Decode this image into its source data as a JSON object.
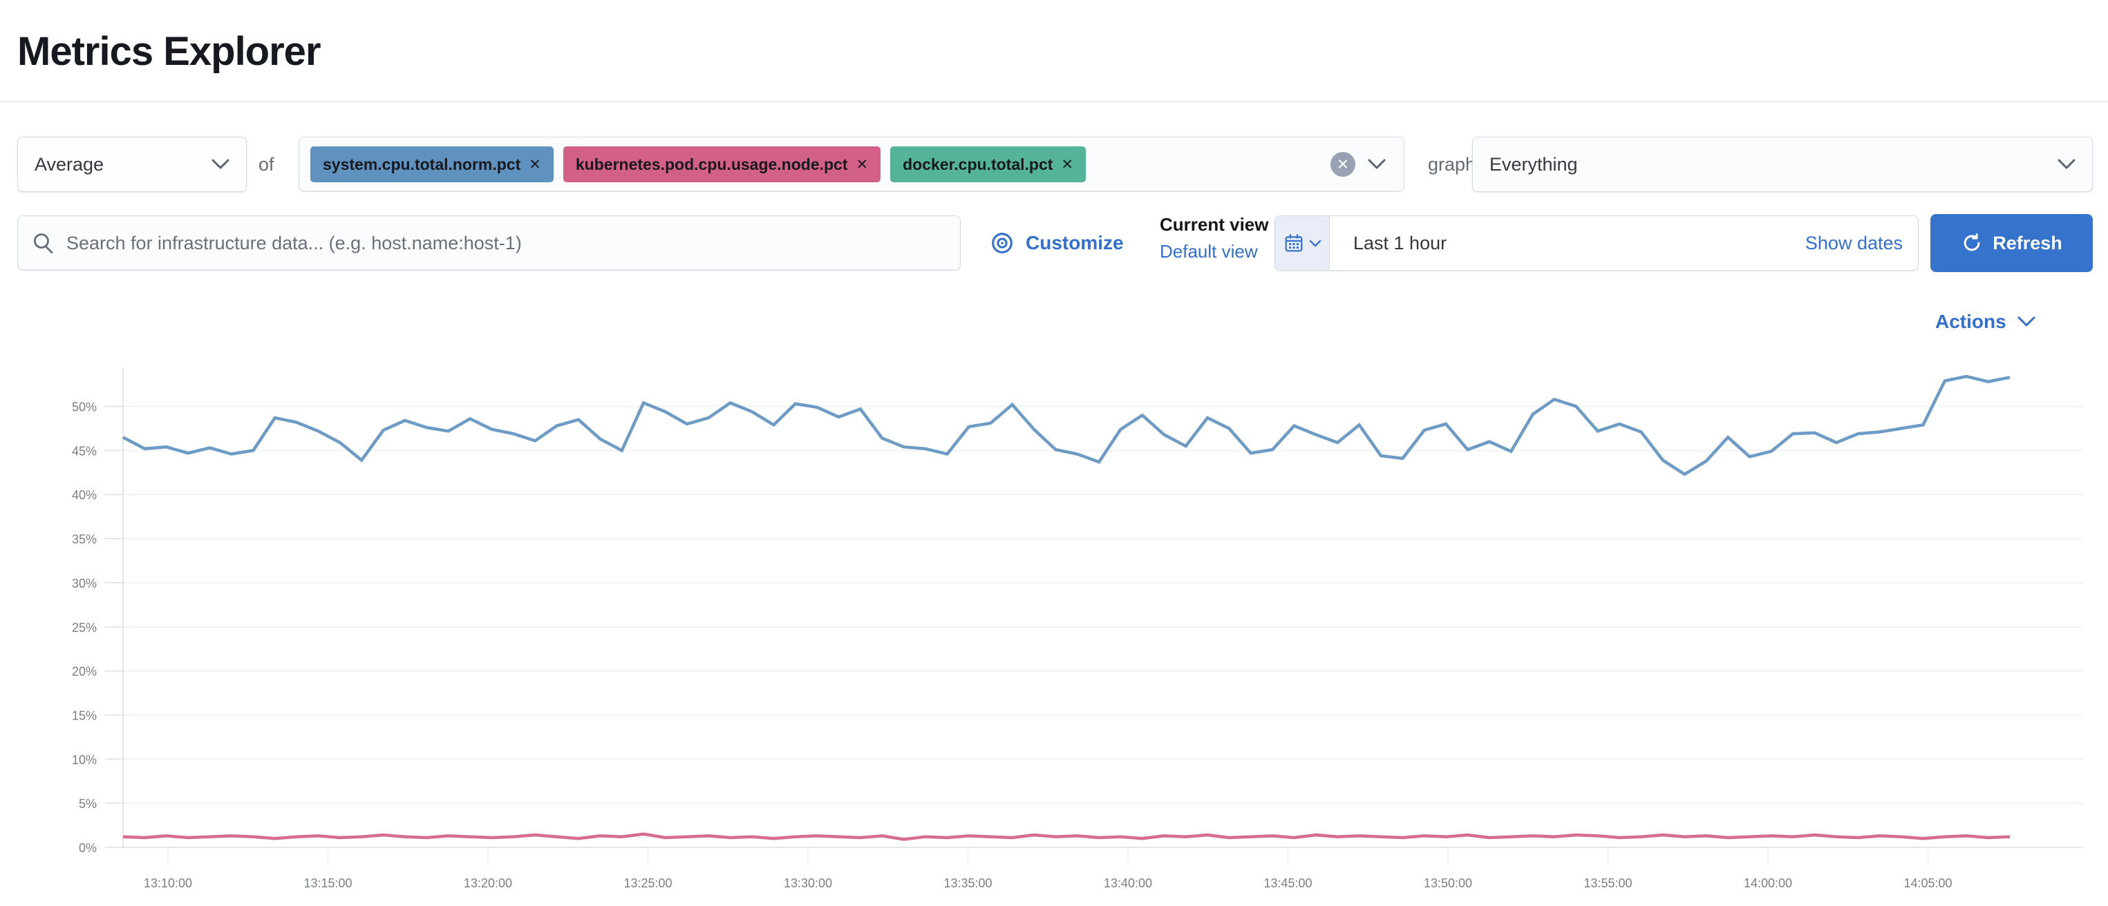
{
  "page": {
    "title": "Metrics Explorer"
  },
  "toolbar": {
    "aggregation_value": "Average",
    "of_label": "of",
    "metrics": [
      {
        "label": "system.cpu.total.norm.pct",
        "color": "#6092C0",
        "remove_icon": "✕"
      },
      {
        "label": "kubernetes.pod.cpu.usage.node.pct",
        "color": "#D36086",
        "remove_icon": "✕"
      },
      {
        "label": "docker.cpu.total.pct",
        "color": "#54B399",
        "remove_icon": "✕"
      }
    ],
    "clear_all_icon": "✕",
    "graph_per_label": "graph per",
    "group_by_value": "Everything"
  },
  "search": {
    "placeholder": "Search for infrastructure data... (e.g. host.name:host-1)"
  },
  "view_controls": {
    "customize_label": "Customize",
    "current_view_label": "Current view",
    "current_view_value": "Default view"
  },
  "time_picker": {
    "range_label": "Last 1 hour",
    "show_dates_label": "Show dates",
    "refresh_label": "Refresh"
  },
  "actions_label": "Actions",
  "colors": {
    "primary_blue": "#3573cd",
    "link_blue": "#336fce",
    "series_blue": "#6092C0",
    "series_pink": "#D36086",
    "series_green": "#54B399",
    "axis_text": "#7a7e87",
    "grid_line": "#f1f3f7",
    "axis_line": "#e2e5ec"
  },
  "chart_data": {
    "type": "line",
    "title": "",
    "xlabel": "",
    "ylabel": "",
    "grid": true,
    "legend": false,
    "y_axis": {
      "unit": "%",
      "min": 0,
      "max": 55,
      "tick_step": 5,
      "tick_labels": [
        "0%",
        "5%",
        "10%",
        "15%",
        "20%",
        "25%",
        "30%",
        "35%",
        "40%",
        "45%",
        "50%"
      ]
    },
    "x_axis": {
      "tick_labels": [
        "13:10:00",
        "13:15:00",
        "13:20:00",
        "13:25:00",
        "13:30:00",
        "13:35:00",
        "13:40:00",
        "13:45:00",
        "13:50:00",
        "13:55:00",
        "14:00:00",
        "14:05:00"
      ]
    },
    "series": [
      {
        "name": "system.cpu.total.norm.pct",
        "color": "#6092C0",
        "unit": "%",
        "values": [
          46.5,
          45.2,
          45.4,
          44.7,
          45.3,
          44.6,
          45.0,
          48.7,
          48.2,
          47.2,
          45.9,
          43.9,
          47.3,
          48.4,
          47.6,
          47.2,
          48.6,
          47.4,
          46.9,
          46.1,
          47.8,
          48.5,
          46.3,
          45.0,
          50.4,
          49.4,
          48.0,
          48.7,
          50.4,
          49.4,
          47.9,
          50.3,
          49.9,
          48.8,
          49.7,
          46.4,
          45.4,
          45.2,
          44.6,
          47.7,
          48.1,
          50.2,
          47.4,
          45.1,
          44.6,
          43.7,
          47.4,
          49.0,
          46.8,
          45.5,
          48.7,
          47.5,
          44.7,
          45.1,
          47.8,
          46.8,
          45.9,
          47.9,
          44.4,
          44.1,
          47.3,
          48.0,
          45.1,
          46.0,
          44.9,
          49.1,
          50.8,
          50.0,
          47.2,
          48.0,
          47.1,
          43.9,
          42.3,
          43.8,
          46.5,
          44.3,
          44.9,
          46.9,
          47.0,
          45.9,
          46.9,
          47.1,
          47.5,
          47.9,
          52.9,
          53.4,
          52.8,
          53.3
        ]
      },
      {
        "name": "kubernetes.pod.cpu.usage.node.pct",
        "color": "#D36086",
        "unit": "%",
        "values": [
          1.2,
          1.1,
          1.3,
          1.1,
          1.2,
          1.3,
          1.2,
          1.0,
          1.2,
          1.3,
          1.1,
          1.2,
          1.4,
          1.2,
          1.1,
          1.3,
          1.2,
          1.1,
          1.2,
          1.4,
          1.2,
          1.0,
          1.3,
          1.2,
          1.5,
          1.1,
          1.2,
          1.3,
          1.1,
          1.2,
          1.0,
          1.2,
          1.3,
          1.2,
          1.1,
          1.3,
          0.9,
          1.2,
          1.1,
          1.3,
          1.2,
          1.1,
          1.4,
          1.2,
          1.3,
          1.1,
          1.2,
          1.0,
          1.3,
          1.2,
          1.4,
          1.1,
          1.2,
          1.3,
          1.1,
          1.4,
          1.2,
          1.3,
          1.2,
          1.1,
          1.3,
          1.2,
          1.4,
          1.1,
          1.2,
          1.3,
          1.2,
          1.4,
          1.3,
          1.1,
          1.2,
          1.4,
          1.2,
          1.3,
          1.1,
          1.2,
          1.3,
          1.2,
          1.4,
          1.2,
          1.1,
          1.3,
          1.2,
          1.0,
          1.2,
          1.3,
          1.1,
          1.2
        ]
      }
    ]
  }
}
